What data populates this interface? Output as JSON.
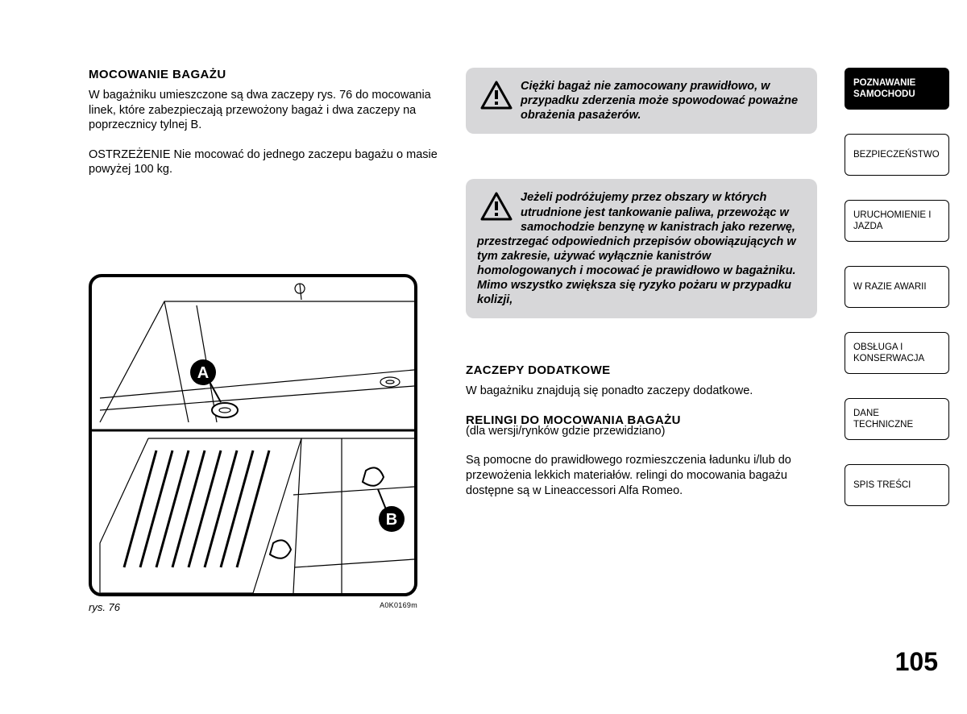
{
  "left": {
    "h1": "MOCOWANIE BAGAŻU",
    "p1": "W bagażniku umieszczone są dwa zaczepy rys. 76 do mocowania linek, które zabezpieczają przewożony bagaż i dwa zaczepy na poprzecznicy tylnej B.",
    "p2": "OSTRZEŻENIE Nie mocować do jednego zaczepu bagażu o masie powyżej 100 kg.",
    "fig_label": "rys. 76",
    "fig_code": "A0K0169m",
    "marker_a": "A",
    "marker_b": "B"
  },
  "right": {
    "warn1": "Ciężki bagaż nie zamocowany prawidłowo, w przypadku zderzenia może spowodować poważne obrażenia pasażerów.",
    "warn2": "Jeżeli podróżujemy przez obszary w których utrudnione jest tankowanie paliwa, przewożąc w samochodzie benzynę w kanistrach jako rezerwę, przestrzegać odpowiednich przepisów obowiązujących w tym zakresie, używać wyłącznie kanistrów homologowanych i mocować je prawidłowo w bagażniku. Mimo wszystko zwiększa się ryzyko pożaru w przypadku kolizji,",
    "h2": "ZACZEPY DODATKOWE",
    "p3": "W bagażniku znajdują się ponadto zaczepy dodatkowe.",
    "h3": "RELINGI DO MOCOWANIA BAGAŻU",
    "p4_sub": "(dla wersji/rynków gdzie przewidziano)",
    "p5": "Są pomocne do prawidłowego rozmieszczenia ładunku i/lub do przewożenia lekkich materiałów. relingi do mocowania bagażu dostępne są w Lineaccessori Alfa Romeo."
  },
  "tabs": [
    {
      "label": "POZNAWANIE SAMOCHODU",
      "active": true
    },
    {
      "label": "BEZPIECZEŃSTWO",
      "active": false
    },
    {
      "label": "URUCHOMIENIE I JAZDA",
      "active": false
    },
    {
      "label": "W RAZIE AWARII",
      "active": false
    },
    {
      "label": "OBSŁUGA I KONSERWACJA",
      "active": false
    },
    {
      "label": "DANE TECHNICZNE",
      "active": false
    },
    {
      "label": "SPIS TREŚCI",
      "active": false
    }
  ],
  "page_number": "105",
  "colors": {
    "warn_bg": "#d7d7d9",
    "text": "#000000",
    "bg": "#ffffff"
  }
}
